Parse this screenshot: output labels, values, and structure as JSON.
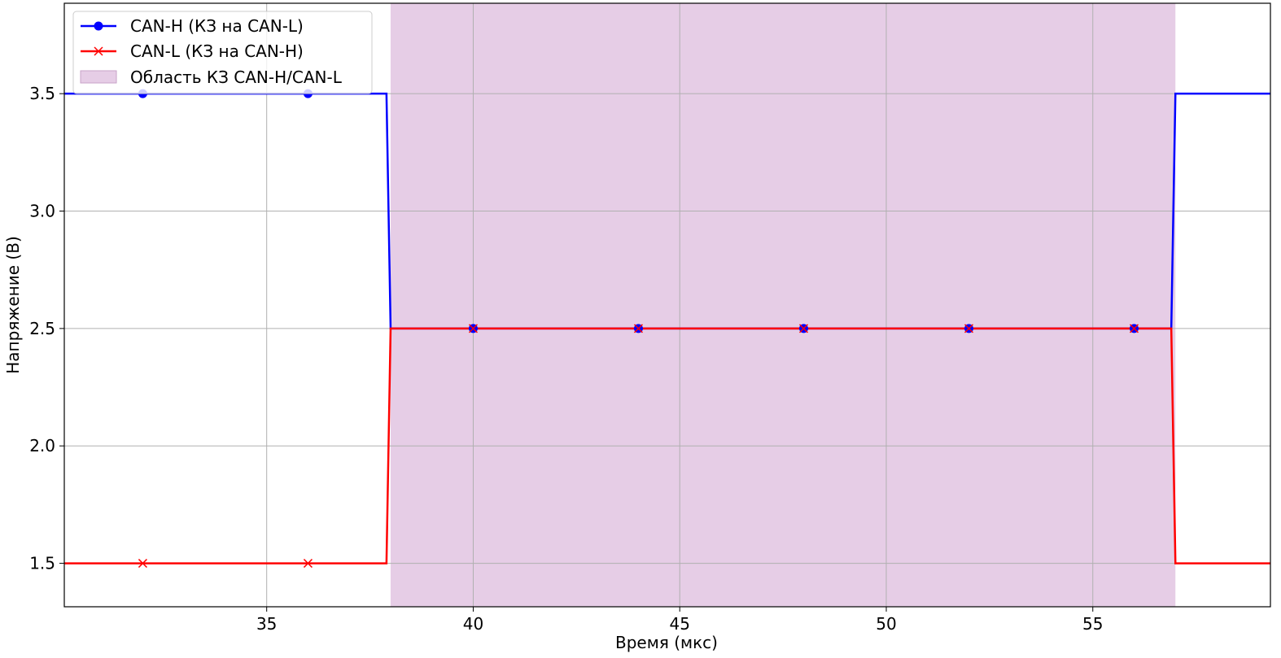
{
  "chart_data": {
    "type": "line",
    "xlabel": "Время (мкс)",
    "ylabel": "Напряжение (В)",
    "xlim": [
      30.1,
      59.3
    ],
    "ylim": [
      1.315,
      3.885
    ],
    "xticks": [
      35,
      40,
      45,
      50,
      55
    ],
    "yticks": [
      1.5,
      2.0,
      2.5,
      3.0,
      3.5
    ],
    "xtick_labels": [
      "35",
      "40",
      "45",
      "50",
      "55"
    ],
    "ytick_labels": [
      "1.5",
      "2.0",
      "2.5",
      "3.0",
      "3.5"
    ],
    "grid": true,
    "legend_position": "top-left",
    "shaded_region": {
      "label": "Область КЗ CAN-H/CAN-L",
      "x_start": 38.0,
      "x_end": 57.0,
      "color": "#d8b2d8"
    },
    "series": [
      {
        "name": "CAN-H (КЗ на CAN-L)",
        "color": "#0000ff",
        "marker": "circle",
        "x": [
          30.1,
          37.9,
          38.0,
          56.9,
          57.0,
          59.3
        ],
        "y": [
          3.5,
          3.5,
          2.5,
          2.5,
          3.5,
          3.5
        ],
        "marker_x": [
          32,
          36,
          40,
          44,
          48,
          52,
          56
        ],
        "marker_y": [
          3.5,
          3.5,
          2.5,
          2.5,
          2.5,
          2.5,
          2.5
        ]
      },
      {
        "name": "CAN-L (КЗ на CAN-H)",
        "color": "#ff0000",
        "marker": "x",
        "x": [
          30.1,
          37.9,
          38.0,
          56.9,
          57.0,
          59.3
        ],
        "y": [
          1.5,
          1.5,
          2.5,
          2.5,
          1.5,
          1.5
        ],
        "marker_x": [
          32,
          36,
          40,
          44,
          48,
          52,
          56
        ],
        "marker_y": [
          1.5,
          1.5,
          2.5,
          2.5,
          2.5,
          2.5,
          2.5
        ]
      }
    ]
  }
}
